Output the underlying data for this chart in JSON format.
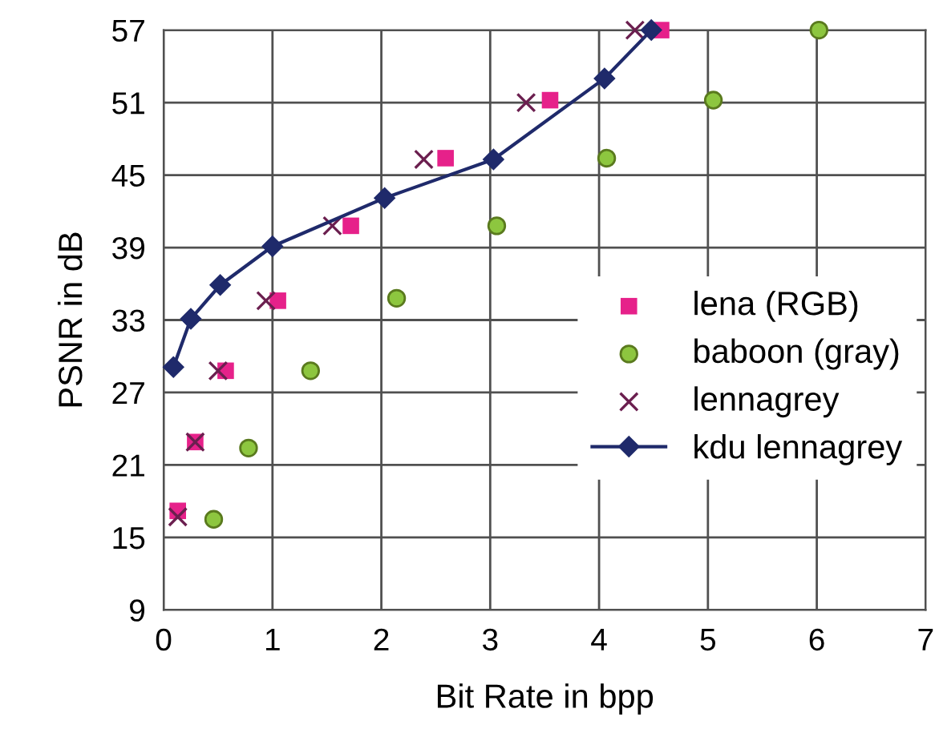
{
  "chart_data": {
    "type": "scatter",
    "xlabel": "Bit Rate in bpp",
    "ylabel": "PSNR in dB",
    "xlim": [
      0,
      7
    ],
    "xticks": [
      0,
      1,
      2,
      3,
      4,
      5,
      6,
      7
    ],
    "ylim": [
      9,
      57
    ],
    "yticks": [
      9,
      15,
      21,
      27,
      33,
      39,
      45,
      51,
      57
    ],
    "grid": true,
    "legend": "right",
    "series": [
      {
        "name": "lena (RGB)",
        "marker": "square",
        "color": "#e6218a",
        "x": [
          0.13,
          0.29,
          0.57,
          1.05,
          1.72,
          2.59,
          3.55,
          4.57
        ],
        "values": [
          17.2,
          22.9,
          28.8,
          34.6,
          40.8,
          46.4,
          51.2,
          57.0
        ]
      },
      {
        "name": "baboon (gray)",
        "marker": "circle",
        "color": "#8dc63f",
        "x": [
          0.46,
          0.78,
          1.35,
          2.14,
          3.06,
          4.07,
          5.05,
          6.02
        ],
        "values": [
          16.5,
          22.4,
          28.8,
          34.8,
          40.8,
          46.4,
          51.2,
          57.0
        ]
      },
      {
        "name": "lennagrey",
        "marker": "cross",
        "color": "#6b1f4f",
        "x": [
          0.13,
          0.29,
          0.5,
          0.94,
          1.55,
          2.39,
          3.33,
          4.33
        ],
        "values": [
          16.7,
          22.9,
          28.8,
          34.6,
          40.8,
          46.3,
          51.0,
          57.0
        ]
      },
      {
        "name": "kdu lennagrey",
        "type": "line",
        "marker": "diamond",
        "line_style": "solid",
        "color": "#1f2a6b",
        "x": [
          0.09,
          0.25,
          0.52,
          1.0,
          2.03,
          3.03,
          4.05,
          4.48
        ],
        "values": [
          29.1,
          33.1,
          35.9,
          39.1,
          43.1,
          46.3,
          53.0,
          57.0
        ]
      }
    ]
  }
}
